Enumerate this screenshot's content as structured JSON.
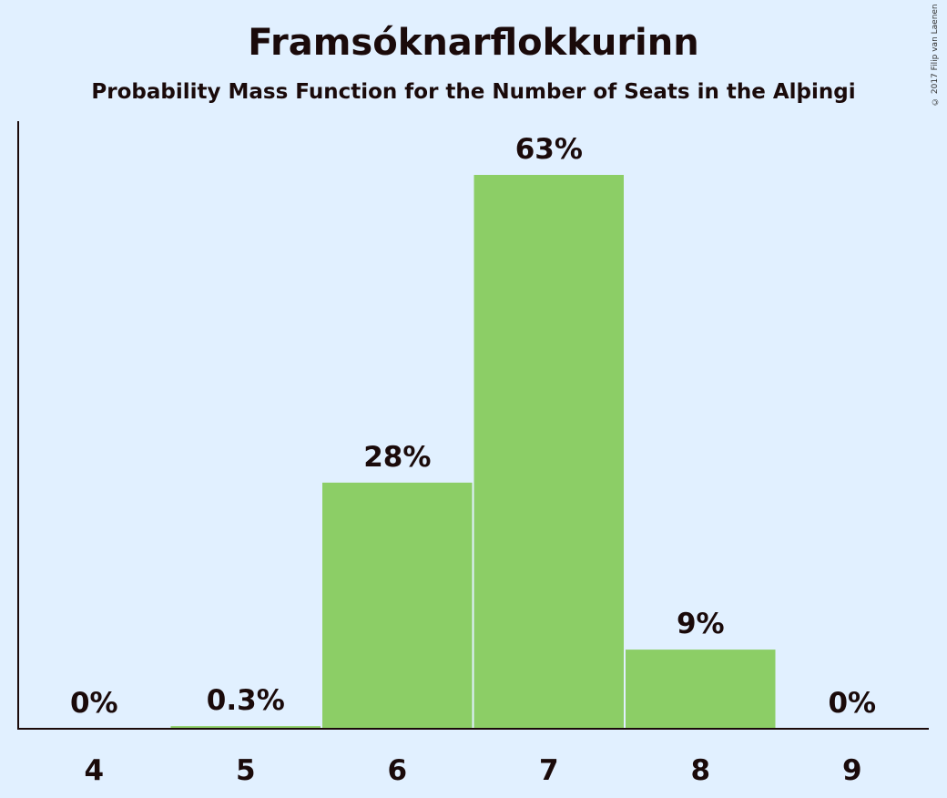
{
  "chart_data": {
    "type": "bar",
    "title": "Framsóknarflokkurinn",
    "subtitle": "Probability Mass Function for the Number of Seats in the Alþingi",
    "xlabel": "",
    "ylabel": "",
    "categories": [
      "4",
      "5",
      "6",
      "7",
      "8",
      "9"
    ],
    "values": [
      0,
      0.3,
      28,
      63,
      9,
      0
    ],
    "data_labels": [
      "0%",
      "0.3%",
      "28%",
      "63%",
      "9%",
      "0%"
    ],
    "ylim": [
      0,
      70
    ],
    "grid": false,
    "legend": "none",
    "bar_color": "#8cce66",
    "axis_color": "#1a0a0a"
  },
  "copyright": "© 2017 Filip van Laenen"
}
